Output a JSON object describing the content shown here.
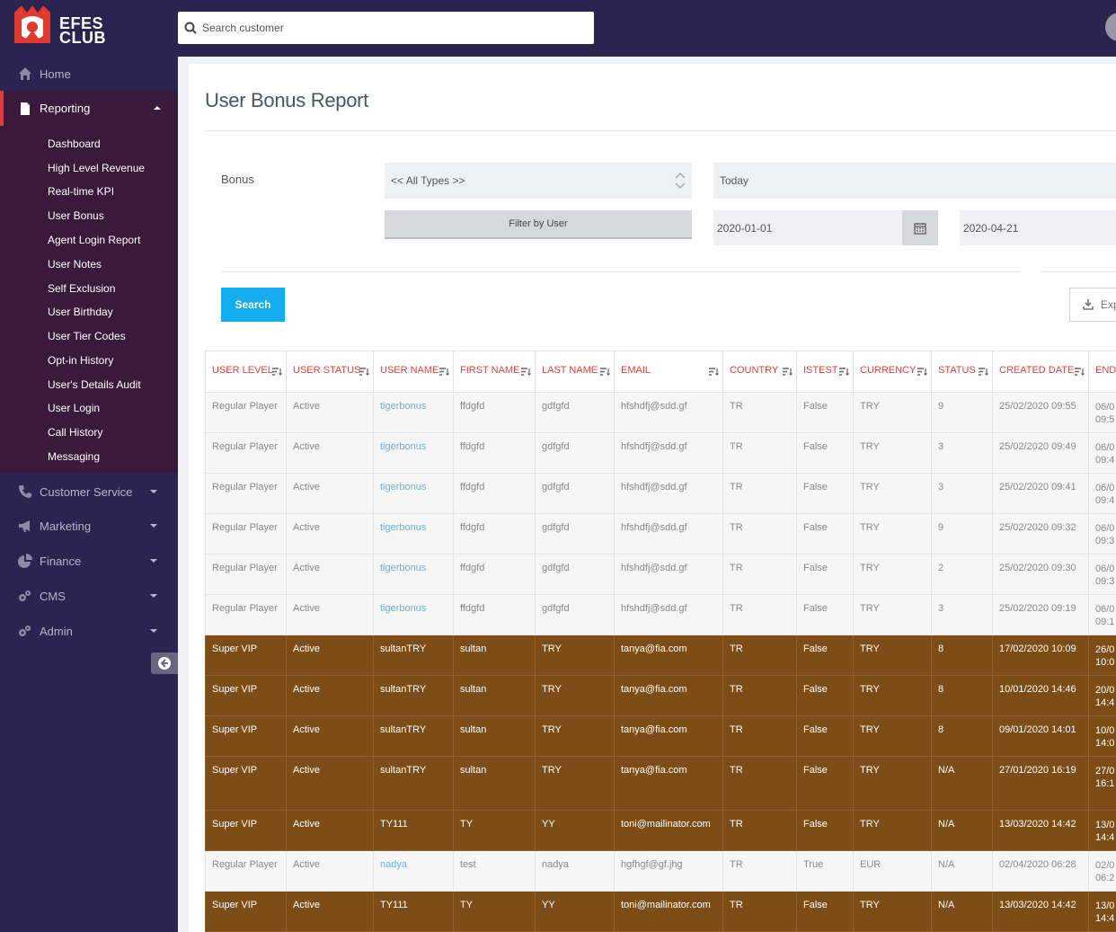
{
  "brand": {
    "line1": "EFES",
    "line2": "CLUB"
  },
  "search": {
    "placeholder": "Search customer"
  },
  "nav": {
    "home": "Home",
    "reporting": "Reporting",
    "customer_service": "Customer Service",
    "marketing": "Marketing",
    "finance": "Finance",
    "cms": "CMS",
    "admin": "Admin"
  },
  "submenu": [
    "Dashboard",
    "High Level Revenue",
    "Real-time KPI",
    "User Bonus",
    "Agent Login Report",
    "User Notes",
    "Self Exclusion",
    "User Birthday",
    "User Tier Codes",
    "Opt-in History",
    "User's Details Audit",
    "User Login",
    "Call History",
    "Messaging"
  ],
  "page": {
    "title": "User Bonus Report",
    "bonus_label": "Bonus",
    "type_select": "<< All Types >>",
    "period": "Today",
    "filter_by_user": "Filter by User",
    "date_from": "2020-01-01",
    "date_to": "2020-04-21",
    "search_button": "Search",
    "export_button": "Exp"
  },
  "table": {
    "headers": [
      "USER LEVEL",
      "USER STATUS",
      "USER NAME",
      "FIRST NAME",
      "LAST NAME",
      "EMAIL",
      "COUNTRY",
      "ISTEST",
      "CURRENCY",
      "STATUS",
      "CREATED DATE",
      "END"
    ],
    "rows": [
      {
        "type": "regular",
        "cells": [
          "Regular Player",
          "Active",
          "tigerbonus",
          "ffdgfd",
          "gdfgfd",
          "hfshdfj@sdd.gf",
          "TR",
          "False",
          "TRY",
          "9",
          "25/02/2020 09:55"
        ],
        "end": [
          "06/0",
          "09:5"
        ]
      },
      {
        "type": "regular",
        "cells": [
          "Regular Player",
          "Active",
          "tigerbonus",
          "ffdgfd",
          "gdfgfd",
          "hfshdfj@sdd.gf",
          "TR",
          "False",
          "TRY",
          "3",
          "25/02/2020 09:49"
        ],
        "end": [
          "06/0",
          "09:4"
        ]
      },
      {
        "type": "regular",
        "cells": [
          "Regular Player",
          "Active",
          "tigerbonus",
          "ffdgfd",
          "gdfgfd",
          "hfshdfj@sdd.gf",
          "TR",
          "False",
          "TRY",
          "3",
          "25/02/2020 09:41"
        ],
        "end": [
          "06/0",
          "09:4"
        ]
      },
      {
        "type": "regular",
        "cells": [
          "Regular Player",
          "Active",
          "tigerbonus",
          "ffdgfd",
          "gdfgfd",
          "hfshdfj@sdd.gf",
          "TR",
          "False",
          "TRY",
          "9",
          "25/02/2020 09:32"
        ],
        "end": [
          "06/0",
          "09:3"
        ]
      },
      {
        "type": "regular",
        "cells": [
          "Regular Player",
          "Active",
          "tigerbonus",
          "ffdgfd",
          "gdfgfd",
          "hfshdfj@sdd.gf",
          "TR",
          "False",
          "TRY",
          "2",
          "25/02/2020 09:30"
        ],
        "end": [
          "06/0",
          "09:3"
        ]
      },
      {
        "type": "regular",
        "cells": [
          "Regular Player",
          "Active",
          "tigerbonus",
          "ffdgfd",
          "gdfgfd",
          "hfshdfj@sdd.gf",
          "TR",
          "False",
          "TRY",
          "3",
          "25/02/2020 09:19"
        ],
        "end": [
          "06/0",
          "09:1"
        ]
      },
      {
        "type": "vip",
        "cells": [
          "Super VIP",
          "Active",
          "sultanTRY",
          "sultan",
          "TRY",
          "tanya@fia.com",
          "TR",
          "False",
          "TRY",
          "8",
          "17/02/2020 10:09"
        ],
        "end": [
          "26/0",
          "10:0"
        ]
      },
      {
        "type": "vip",
        "cells": [
          "Super VIP",
          "Active",
          "sultanTRY",
          "sultan",
          "TRY",
          "tanya@fia.com",
          "TR",
          "False",
          "TRY",
          "8",
          "10/01/2020 14:46"
        ],
        "end": [
          "20/0",
          "14:4"
        ]
      },
      {
        "type": "vip",
        "cells": [
          "Super VIP",
          "Active",
          "sultanTRY",
          "sultan",
          "TRY",
          "tanya@fia.com",
          "TR",
          "False",
          "TRY",
          "8",
          "09/01/2020 14:01"
        ],
        "end": [
          "10/0",
          "14:0"
        ]
      },
      {
        "type": "vip tall",
        "cells": [
          "Super VIP",
          "Active",
          "sultanTRY",
          "sultan",
          "TRY",
          "tanya@fia.com",
          "TR",
          "False",
          "TRY",
          "N/A",
          "27/01/2020 16:19"
        ],
        "end": [
          "27/0",
          "16:1"
        ]
      },
      {
        "type": "vip",
        "cells": [
          "Super VIP",
          "Active",
          "TY111",
          "TY",
          "YY",
          "toni@mailinator.com",
          "TR",
          "False",
          "TRY",
          "N/A",
          "13/03/2020 14:42"
        ],
        "end": [
          "13/0",
          "14:4"
        ]
      },
      {
        "type": "regular",
        "cells": [
          "Regular Player",
          "Active",
          "nadya",
          "test",
          "nadya",
          "hgfhgf@gf.jhg",
          "TR",
          "True",
          "EUR",
          "N/A",
          "02/04/2020 06:28"
        ],
        "end": [
          "02/0",
          "06:2"
        ]
      },
      {
        "type": "vip",
        "cells": [
          "Super VIP",
          "Active",
          "TY111",
          "TY",
          "YY",
          "toni@mailinator.com",
          "TR",
          "False",
          "TRY",
          "N/A",
          "13/03/2020 14:42"
        ],
        "end": [
          "13/0",
          "14:4"
        ]
      }
    ]
  }
}
